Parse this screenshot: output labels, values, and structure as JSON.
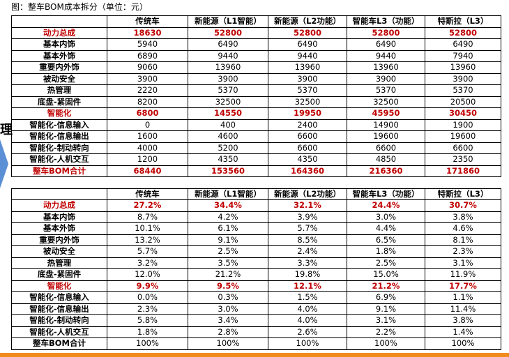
{
  "caption": "图：整车BOM成本拆分（单位：元）",
  "side_text": "理",
  "tables": [
    {
      "header": [
        "传统车",
        "新能源（L1智能）",
        "新能源（L2功能）",
        "智能车L3（功能）",
        "特斯拉（L3）"
      ],
      "rows": [
        {
          "highlight": true,
          "cells": [
            "动力总成",
            "18630",
            "52800",
            "52800",
            "52800",
            "52800"
          ]
        },
        {
          "highlight": false,
          "cells": [
            "基本内饰",
            "5940",
            "6490",
            "6490",
            "6490",
            "6490"
          ]
        },
        {
          "highlight": false,
          "cells": [
            "基本外饰",
            "6890",
            "9440",
            "9440",
            "9440",
            "7940"
          ]
        },
        {
          "highlight": false,
          "cells": [
            "重要内外饰",
            "9060",
            "13960",
            "13960",
            "13960",
            "13960"
          ]
        },
        {
          "highlight": false,
          "cells": [
            "被动安全",
            "3900",
            "3900",
            "3900",
            "3900",
            "3900"
          ]
        },
        {
          "highlight": false,
          "cells": [
            "热管理",
            "2220",
            "5370",
            "5370",
            "5370",
            "5370"
          ]
        },
        {
          "highlight": false,
          "cells": [
            "底盘-紧固件",
            "8200",
            "32500",
            "32500",
            "32500",
            "20500"
          ]
        },
        {
          "highlight": true,
          "cells": [
            "智能化",
            "6800",
            "14550",
            "19950",
            "45950",
            "30450"
          ]
        },
        {
          "highlight": false,
          "cells": [
            "智能化-信息输入",
            "0",
            "400",
            "2400",
            "14900",
            "1900"
          ]
        },
        {
          "highlight": false,
          "cells": [
            "智能化-信息输出",
            "1600",
            "4600",
            "6600",
            "19600",
            "19600"
          ]
        },
        {
          "highlight": false,
          "cells": [
            "智能化-制动转向",
            "4000",
            "5200",
            "6600",
            "6600",
            "6600"
          ]
        },
        {
          "highlight": false,
          "cells": [
            "智能化-人机交互",
            "1200",
            "4350",
            "4350",
            "4850",
            "2350"
          ]
        },
        {
          "highlight": true,
          "cells": [
            "整车BOM合计",
            "68440",
            "153560",
            "164360",
            "216360",
            "171860"
          ]
        }
      ]
    },
    {
      "header": [
        "传统车",
        "新能源（L1智能）",
        "新能源（L2功能）",
        "智能车L3（功能）",
        "特斯拉（L3）"
      ],
      "rows": [
        {
          "highlight": true,
          "cells": [
            "动力总成",
            "27.2%",
            "34.4%",
            "32.1%",
            "24.4%",
            "30.7%"
          ]
        },
        {
          "highlight": false,
          "cells": [
            "基本内饰",
            "8.7%",
            "4.2%",
            "3.9%",
            "3.0%",
            "3.8%"
          ]
        },
        {
          "highlight": false,
          "cells": [
            "基本外饰",
            "10.1%",
            "6.1%",
            "5.7%",
            "4.4%",
            "4.6%"
          ]
        },
        {
          "highlight": false,
          "cells": [
            "重要内外饰",
            "13.2%",
            "9.1%",
            "8.5%",
            "6.5%",
            "8.1%"
          ]
        },
        {
          "highlight": false,
          "cells": [
            "被动安全",
            "5.7%",
            "2.5%",
            "2.4%",
            "1.8%",
            "2.3%"
          ]
        },
        {
          "highlight": false,
          "cells": [
            "热管理",
            "3.2%",
            "3.5%",
            "3.3%",
            "2.5%",
            "3.1%"
          ]
        },
        {
          "highlight": false,
          "cells": [
            "底盘-紧固件",
            "12.0%",
            "21.2%",
            "19.8%",
            "15.0%",
            "11.9%"
          ]
        },
        {
          "highlight": true,
          "cells": [
            "智能化",
            "9.9%",
            "9.5%",
            "12.1%",
            "21.2%",
            "17.7%"
          ]
        },
        {
          "highlight": false,
          "cells": [
            "智能化-信息输入",
            "0.0%",
            "0.3%",
            "1.5%",
            "6.9%",
            "1.1%"
          ]
        },
        {
          "highlight": false,
          "cells": [
            "智能化-信息输出",
            "2.3%",
            "3.0%",
            "4.0%",
            "9.1%",
            "11.4%"
          ]
        },
        {
          "highlight": false,
          "cells": [
            "智能化-制动转向",
            "5.8%",
            "3.4%",
            "4.0%",
            "3.1%",
            "3.8%"
          ]
        },
        {
          "highlight": false,
          "cells": [
            "智能化-人机交互",
            "1.8%",
            "2.8%",
            "2.6%",
            "2.2%",
            "1.4%"
          ]
        },
        {
          "highlight": false,
          "cells": [
            "整车BOM合计",
            "100%",
            "100%",
            "100%",
            "100%",
            "100%"
          ]
        }
      ]
    }
  ]
}
